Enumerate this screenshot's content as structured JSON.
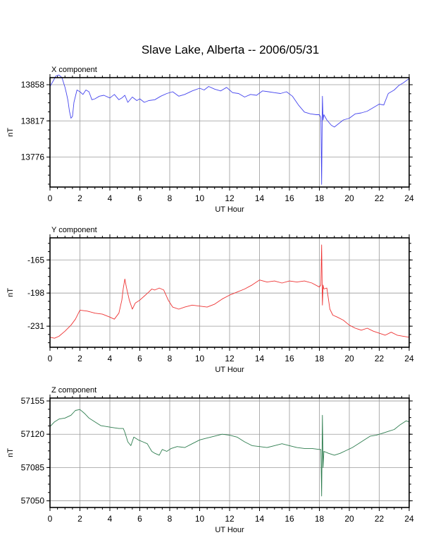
{
  "figure": {
    "title": "Slave Lake, Alberta -- 2006/05/31"
  },
  "chart_data": [
    {
      "type": "line",
      "title": "X component",
      "xlabel": "UT Hour",
      "ylabel": "nT",
      "xlim": [
        0,
        24
      ],
      "ylim": [
        13742,
        13866
      ],
      "xticks": [
        0,
        2,
        4,
        6,
        8,
        10,
        12,
        14,
        16,
        18,
        20,
        22,
        24
      ],
      "yticks": [
        13776,
        13817,
        13858
      ],
      "color": "#4444ee",
      "series": [
        {
          "x": [
            0,
            0.2,
            0.4,
            0.6,
            0.8,
            1.0,
            1.1,
            1.2,
            1.3,
            1.4,
            1.5,
            1.6,
            1.8,
            2.0,
            2.2,
            2.4,
            2.6,
            2.8,
            3.0,
            3.3,
            3.6,
            4.0,
            4.3,
            4.6,
            4.8,
            5.0,
            5.2,
            5.5,
            5.8,
            6.0,
            6.3,
            6.6,
            7.0,
            7.4,
            7.8,
            8.2,
            8.6,
            9.0,
            9.5,
            10.0,
            10.3,
            10.6,
            11.0,
            11.4,
            11.8,
            12.2,
            12.6,
            13.0,
            13.4,
            13.8,
            14.2,
            14.6,
            15.0,
            15.4,
            15.8,
            16.2,
            16.6,
            17.0,
            17.4,
            17.8,
            18.0,
            18.1,
            18.15,
            18.2,
            18.25,
            18.3,
            18.5,
            18.8,
            19.0,
            19.3,
            19.6,
            20.0,
            20.4,
            20.8,
            21.2,
            21.6,
            22.0,
            22.3,
            22.6,
            23.0,
            23.3,
            23.6,
            24.0
          ],
          "values": [
            13856,
            13862,
            13868,
            13869,
            13866,
            13855,
            13848,
            13840,
            13828,
            13820,
            13822,
            13838,
            13852,
            13850,
            13847,
            13852,
            13850,
            13841,
            13842,
            13845,
            13846,
            13843,
            13847,
            13841,
            13843,
            13846,
            13838,
            13844,
            13840,
            13842,
            13838,
            13840,
            13841,
            13845,
            13848,
            13850,
            13845,
            13847,
            13851,
            13854,
            13852,
            13856,
            13853,
            13851,
            13855,
            13849,
            13848,
            13844,
            13847,
            13846,
            13851,
            13850,
            13849,
            13848,
            13850,
            13845,
            13835,
            13827,
            13825,
            13824,
            13824,
            13821,
            13745,
            13845,
            13818,
            13824,
            13818,
            13812,
            13810,
            13814,
            13818,
            13820,
            13825,
            13826,
            13828,
            13832,
            13836,
            13835,
            13848,
            13852,
            13857,
            13860,
            13865
          ]
        }
      ]
    },
    {
      "type": "line",
      "title": "Y component",
      "xlabel": "UT Hour",
      "ylabel": "nT",
      "xlim": [
        0,
        24
      ],
      "ylim": [
        -252,
        -143
      ],
      "xticks": [
        0,
        2,
        4,
        6,
        8,
        10,
        12,
        14,
        16,
        18,
        20,
        22,
        24
      ],
      "yticks": [
        -231,
        -198,
        -165
      ],
      "color": "#ee3333",
      "series": [
        {
          "x": [
            0,
            0.3,
            0.6,
            1.0,
            1.4,
            1.7,
            2.0,
            2.5,
            3.0,
            3.5,
            4.0,
            4.3,
            4.6,
            4.8,
            4.9,
            5.0,
            5.1,
            5.3,
            5.5,
            5.7,
            6.0,
            6.3,
            6.6,
            6.8,
            7.0,
            7.3,
            7.6,
            7.9,
            8.2,
            8.6,
            9.0,
            9.5,
            10.0,
            10.5,
            11.0,
            11.5,
            12.0,
            12.5,
            13.0,
            13.5,
            14.0,
            14.5,
            15.0,
            15.5,
            16.0,
            16.5,
            17.0,
            17.5,
            18.0,
            18.1,
            18.15,
            18.2,
            18.25,
            18.3,
            18.5,
            18.7,
            18.9,
            19.2,
            19.6,
            20.0,
            20.4,
            20.8,
            21.2,
            21.6,
            22.0,
            22.4,
            22.8,
            23.2,
            23.6,
            24.0
          ],
          "values": [
            -242,
            -243,
            -241,
            -236,
            -230,
            -224,
            -215,
            -216,
            -218,
            -219,
            -222,
            -224,
            -218,
            -205,
            -193,
            -184,
            -192,
            -205,
            -214,
            -208,
            -205,
            -201,
            -197,
            -194,
            -195,
            -193,
            -195,
            -205,
            -212,
            -214,
            -212,
            -210,
            -211,
            -212,
            -209,
            -204,
            -200,
            -197,
            -194,
            -190,
            -185,
            -187,
            -186,
            -188,
            -186,
            -187,
            -186,
            -188,
            -192,
            -190,
            -150,
            -210,
            -190,
            -194,
            -193,
            -214,
            -220,
            -222,
            -225,
            -230,
            -233,
            -235,
            -233,
            -236,
            -238,
            -240,
            -237,
            -240,
            -241,
            -242
          ]
        }
      ]
    },
    {
      "type": "line",
      "title": "Z component",
      "xlabel": "UT Hour",
      "ylabel": "nT",
      "xlim": [
        0,
        24
      ],
      "ylim": [
        57043,
        57158
      ],
      "xticks": [
        0,
        2,
        4,
        6,
        8,
        10,
        12,
        14,
        16,
        18,
        20,
        22,
        24
      ],
      "yticks": [
        57050,
        57085,
        57120,
        57155
      ],
      "color": "#2e7d4f",
      "series": [
        {
          "x": [
            0,
            0.3,
            0.6,
            1.0,
            1.4,
            1.7,
            2.0,
            2.3,
            2.6,
            3.0,
            3.4,
            3.8,
            4.2,
            4.6,
            4.9,
            5.0,
            5.2,
            5.4,
            5.6,
            5.9,
            6.2,
            6.5,
            6.8,
            7.0,
            7.3,
            7.5,
            7.8,
            8.1,
            8.5,
            9.0,
            9.5,
            10.0,
            10.5,
            11.0,
            11.5,
            12.0,
            12.5,
            13.0,
            13.5,
            14.0,
            14.5,
            15.0,
            15.5,
            16.0,
            16.5,
            17.0,
            17.5,
            18.0,
            18.1,
            18.15,
            18.2,
            18.25,
            18.3,
            18.6,
            19.0,
            19.4,
            19.8,
            20.2,
            20.6,
            21.0,
            21.4,
            21.8,
            22.2,
            22.6,
            23.0,
            23.4,
            23.8,
            24.0
          ],
          "values": [
            57128,
            57133,
            57136,
            57137,
            57140,
            57145,
            57146,
            57142,
            57137,
            57133,
            57129,
            57128,
            57127,
            57126,
            57126,
            57122,
            57112,
            57108,
            57117,
            57114,
            57112,
            57110,
            57102,
            57100,
            57098,
            57104,
            57102,
            57105,
            57107,
            57106,
            57110,
            57114,
            57116,
            57118,
            57120,
            57119,
            57117,
            57112,
            57108,
            57107,
            57106,
            57108,
            57110,
            57108,
            57106,
            57105,
            57105,
            57104,
            57104,
            57055,
            57140,
            57085,
            57102,
            57100,
            57098,
            57100,
            57103,
            57106,
            57110,
            57114,
            57118,
            57119,
            57121,
            57123,
            57125,
            57130,
            57134,
            57133
          ]
        }
      ]
    }
  ]
}
